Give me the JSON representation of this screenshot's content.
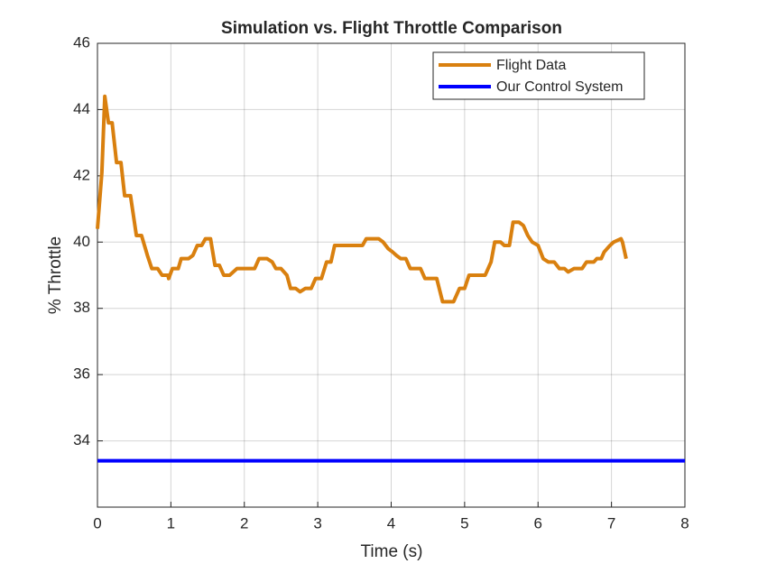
{
  "chart_data": {
    "type": "line",
    "title": "Simulation vs. Flight Throttle Comparison",
    "xlabel": "Time (s)",
    "ylabel": "% Throttle",
    "xlim": [
      0,
      8
    ],
    "xticks": [
      0,
      1,
      2,
      3,
      4,
      5,
      6,
      7,
      8
    ],
    "ylim": [
      32,
      46
    ],
    "yticks": [
      34,
      36,
      38,
      40,
      42,
      44,
      46
    ],
    "grid": true,
    "legend": "northeast",
    "series": [
      {
        "name": "Flight Data",
        "color": "#d9800f",
        "x": [
          0,
          0.06,
          0.1,
          0.15,
          0.2,
          0.26,
          0.32,
          0.37,
          0.45,
          0.53,
          0.6,
          0.68,
          0.74,
          0.82,
          0.88,
          0.96,
          0.97,
          1.02,
          1.1,
          1.14,
          1.24,
          1.3,
          1.36,
          1.42,
          1.47,
          1.54,
          1.6,
          1.66,
          1.72,
          1.8,
          1.9,
          2.14,
          2.2,
          2.31,
          2.38,
          2.43,
          2.5,
          2.58,
          2.63,
          2.7,
          2.76,
          2.83,
          2.91,
          2.97,
          3.05,
          3.12,
          3.18,
          3.23,
          3.61,
          3.66,
          3.83,
          3.89,
          3.96,
          4.02,
          4.07,
          4.13,
          4.2,
          4.26,
          4.4,
          4.46,
          4.62,
          4.7,
          4.85,
          4.93,
          5.0,
          5.06,
          5.28,
          5.36,
          5.41,
          5.49,
          5.54,
          5.61,
          5.66,
          5.74,
          5.8,
          5.86,
          5.92,
          6.0,
          6.07,
          6.14,
          6.22,
          6.29,
          6.36,
          6.41,
          6.49,
          6.6,
          6.66,
          6.76,
          6.8,
          6.86,
          6.9,
          6.98,
          7.03,
          7.13,
          7.15,
          7.2
        ],
        "values": [
          40.4,
          42.1,
          44.4,
          43.6,
          43.6,
          42.4,
          42.4,
          41.4,
          41.4,
          40.2,
          40.2,
          39.6,
          39.2,
          39.2,
          39.0,
          39.0,
          38.9,
          39.2,
          39.2,
          39.5,
          39.5,
          39.6,
          39.9,
          39.9,
          40.1,
          40.1,
          39.3,
          39.3,
          39.0,
          39.0,
          39.2,
          39.2,
          39.5,
          39.5,
          39.4,
          39.2,
          39.2,
          39.0,
          38.6,
          38.6,
          38.5,
          38.6,
          38.6,
          38.9,
          38.9,
          39.4,
          39.4,
          39.9,
          39.9,
          40.1,
          40.1,
          40.0,
          39.8,
          39.7,
          39.6,
          39.5,
          39.5,
          39.2,
          39.2,
          38.9,
          38.9,
          38.2,
          38.2,
          38.6,
          38.6,
          39.0,
          39.0,
          39.4,
          40.0,
          40.0,
          39.9,
          39.9,
          40.6,
          40.6,
          40.5,
          40.2,
          40.0,
          39.9,
          39.5,
          39.4,
          39.4,
          39.2,
          39.2,
          39.1,
          39.2,
          39.2,
          39.4,
          39.4,
          39.5,
          39.5,
          39.7,
          39.9,
          40.0,
          40.1,
          40.0,
          39.5
        ]
      },
      {
        "name": "Our Control System",
        "color": "#0000ff",
        "x": [
          0,
          8
        ],
        "values": [
          33.4,
          33.4
        ]
      }
    ]
  }
}
